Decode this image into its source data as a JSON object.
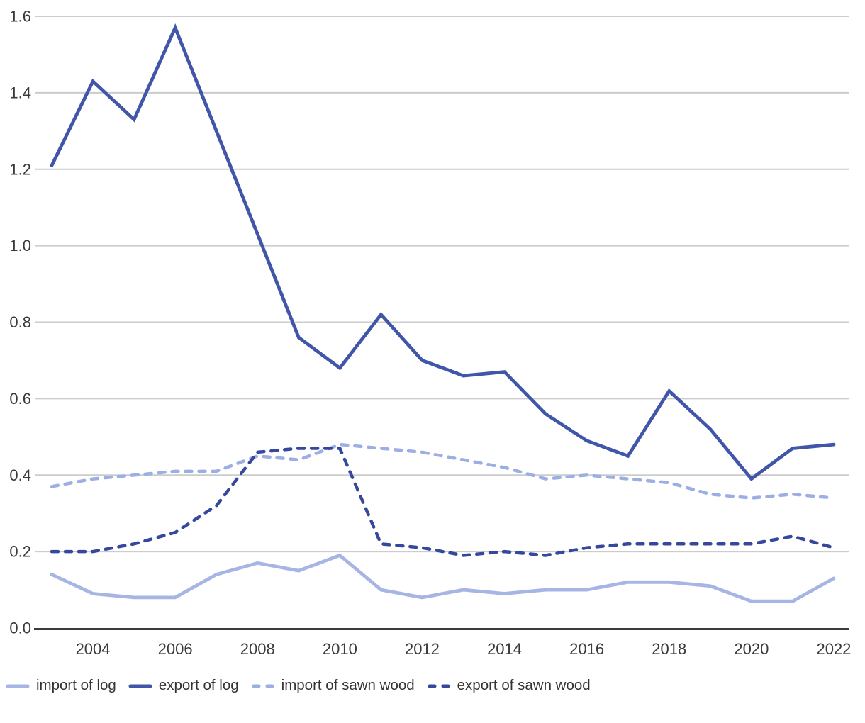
{
  "chart_data": {
    "type": "line",
    "title": "",
    "xlabel": "",
    "ylabel": "",
    "x": [
      2003,
      2004,
      2005,
      2006,
      2007,
      2008,
      2009,
      2010,
      2011,
      2012,
      2013,
      2014,
      2015,
      2016,
      2017,
      2018,
      2019,
      2020,
      2021,
      2022
    ],
    "series": [
      {
        "name": "import of log",
        "style": "solid",
        "color": "#a6b5e4",
        "values": [
          0.14,
          0.09,
          0.08,
          0.08,
          0.14,
          0.17,
          0.15,
          0.19,
          0.1,
          0.08,
          0.1,
          0.09,
          0.1,
          0.1,
          0.12,
          0.12,
          0.11,
          0.07,
          0.07,
          0.13
        ]
      },
      {
        "name": "export of log",
        "style": "solid",
        "color": "#4156a8",
        "values": [
          1.21,
          1.43,
          1.33,
          1.57,
          1.3,
          1.03,
          0.76,
          0.68,
          0.82,
          0.7,
          0.66,
          0.67,
          0.56,
          0.49,
          0.45,
          0.62,
          0.52,
          0.39,
          0.47,
          0.48
        ]
      },
      {
        "name": "import of sawn wood",
        "style": "dashed",
        "color": "#9cafe4",
        "values": [
          0.37,
          0.39,
          0.4,
          0.41,
          0.41,
          0.45,
          0.44,
          0.48,
          0.47,
          0.46,
          0.44,
          0.42,
          0.39,
          0.4,
          0.39,
          0.38,
          0.35,
          0.34,
          0.35,
          0.34
        ]
      },
      {
        "name": "export of sawn wood",
        "style": "dashed",
        "color": "#36479e",
        "values": [
          0.2,
          0.2,
          0.22,
          0.25,
          0.32,
          0.46,
          0.47,
          0.47,
          0.22,
          0.21,
          0.19,
          0.2,
          0.19,
          0.21,
          0.22,
          0.22,
          0.22,
          0.22,
          0.24,
          0.21
        ]
      }
    ],
    "xticks": [
      2004,
      2006,
      2008,
      2010,
      2012,
      2014,
      2016,
      2018,
      2020,
      2022
    ],
    "yticks": [
      0.0,
      0.2,
      0.4,
      0.6,
      0.8,
      1.0,
      1.2,
      1.4,
      1.6
    ],
    "ylim": [
      0.0,
      1.6
    ],
    "grid": "horizontal",
    "legend_position": "bottom-left",
    "colors": {
      "gridline": "#cccccc",
      "axis": "#3c3c3c",
      "tick_text": "#3a3a3a",
      "legend_text": "#333333"
    }
  }
}
